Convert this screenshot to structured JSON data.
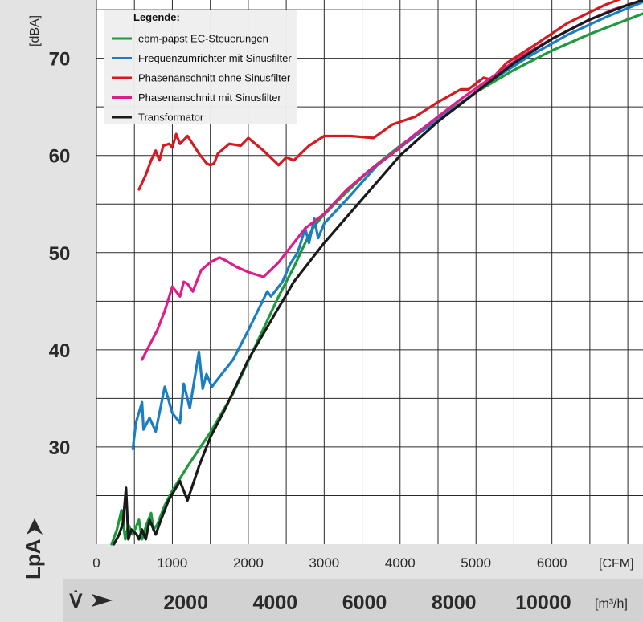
{
  "chart_data": {
    "type": "line",
    "y_unit": "[dBA]",
    "y_label": "LpA",
    "y_ticks": [
      30,
      40,
      50,
      60,
      70
    ],
    "ylim": [
      20,
      76
    ],
    "x_unit": "[CFM]",
    "x_ticks": [
      0,
      1000,
      2000,
      3000,
      4000,
      5000,
      6000
    ],
    "xlim": [
      0,
      7200
    ],
    "x2_label": "V̇",
    "x2_unit": "[m³/h]",
    "x2_ticks": [
      2000,
      4000,
      6000,
      8000,
      10000
    ],
    "grid": true,
    "legend": {
      "title": "Legende:",
      "position": "top-left"
    },
    "series": [
      {
        "name": "ebm-papst EC-Steuerungen",
        "color": "#1e9a3c",
        "points": [
          [
            200,
            20
          ],
          [
            270,
            21.5
          ],
          [
            330,
            23.5
          ],
          [
            380,
            20.5
          ],
          [
            420,
            22
          ],
          [
            480,
            21
          ],
          [
            560,
            22.5
          ],
          [
            600,
            20.5
          ],
          [
            660,
            22
          ],
          [
            720,
            23.2
          ],
          [
            750,
            21.5
          ],
          [
            800,
            22
          ],
          [
            900,
            24
          ],
          [
            1000,
            25.5
          ],
          [
            1200,
            28
          ],
          [
            1500,
            31.5
          ],
          [
            1800,
            35.5
          ],
          [
            2100,
            40.5
          ],
          [
            2400,
            45.5
          ],
          [
            2600,
            48.5
          ],
          [
            2750,
            51
          ],
          [
            2850,
            52.5
          ],
          [
            2950,
            53.5
          ],
          [
            3200,
            55.5
          ],
          [
            3600,
            58.5
          ],
          [
            4000,
            61
          ],
          [
            4500,
            63.8
          ],
          [
            5000,
            66.5
          ],
          [
            5500,
            68.8
          ],
          [
            6000,
            70.8
          ],
          [
            6500,
            72.5
          ],
          [
            7000,
            74
          ],
          [
            7200,
            74.6
          ]
        ]
      },
      {
        "name": "Frequenzumrichter mit Sinusfilter",
        "color": "#1b7ec2",
        "points": [
          [
            480,
            29.8
          ],
          [
            520,
            32.5
          ],
          [
            600,
            34.6
          ],
          [
            620,
            31.8
          ],
          [
            700,
            33
          ],
          [
            780,
            31.6
          ],
          [
            900,
            36.2
          ],
          [
            1000,
            33.5
          ],
          [
            1100,
            32.5
          ],
          [
            1150,
            36.5
          ],
          [
            1230,
            34
          ],
          [
            1350,
            39.8
          ],
          [
            1400,
            36
          ],
          [
            1450,
            37.5
          ],
          [
            1520,
            36.2
          ],
          [
            1650,
            37.5
          ],
          [
            1800,
            39
          ],
          [
            2000,
            42
          ],
          [
            2250,
            46
          ],
          [
            2300,
            45.5
          ],
          [
            2450,
            47
          ],
          [
            2550,
            48.8
          ],
          [
            2650,
            50
          ],
          [
            2750,
            52.5
          ],
          [
            2800,
            51
          ],
          [
            2870,
            53.5
          ],
          [
            2920,
            51.5
          ],
          [
            3000,
            53
          ],
          [
            3300,
            55.5
          ],
          [
            3700,
            59
          ],
          [
            4200,
            62
          ],
          [
            4700,
            64.8
          ],
          [
            5200,
            67.7
          ],
          [
            5700,
            70.2
          ],
          [
            6200,
            72.4
          ],
          [
            6700,
            74.2
          ],
          [
            7200,
            75.8
          ]
        ]
      },
      {
        "name": "Phasenanschnitt ohne Sinusfilter",
        "color": "#d71920",
        "points": [
          [
            560,
            56.5
          ],
          [
            650,
            58
          ],
          [
            720,
            59.5
          ],
          [
            780,
            60.5
          ],
          [
            830,
            59.5
          ],
          [
            880,
            61
          ],
          [
            960,
            61.2
          ],
          [
            1000,
            60.8
          ],
          [
            1050,
            62.2
          ],
          [
            1100,
            61.2
          ],
          [
            1200,
            62
          ],
          [
            1350,
            60.2
          ],
          [
            1450,
            59.2
          ],
          [
            1500,
            59
          ],
          [
            1550,
            59.2
          ],
          [
            1600,
            60.2
          ],
          [
            1750,
            61.2
          ],
          [
            1900,
            61
          ],
          [
            2000,
            61.8
          ],
          [
            2200,
            60.5
          ],
          [
            2400,
            59
          ],
          [
            2500,
            59.8
          ],
          [
            2600,
            59.5
          ],
          [
            2800,
            61
          ],
          [
            2900,
            61.5
          ],
          [
            3000,
            62
          ],
          [
            3350,
            62
          ],
          [
            3650,
            61.8
          ],
          [
            3900,
            63.2
          ],
          [
            4200,
            64
          ],
          [
            4500,
            65.5
          ],
          [
            4800,
            66.8
          ],
          [
            4900,
            66.8
          ],
          [
            5100,
            68
          ],
          [
            5200,
            67.8
          ],
          [
            5400,
            69.5
          ],
          [
            5800,
            71.5
          ],
          [
            6200,
            73.6
          ],
          [
            6700,
            75.5
          ],
          [
            7200,
            77
          ]
        ]
      },
      {
        "name": "Phasenanschnitt mit Sinusfilter",
        "color": "#e01c8a",
        "points": [
          [
            600,
            39
          ],
          [
            700,
            40.5
          ],
          [
            800,
            42
          ],
          [
            900,
            44
          ],
          [
            1000,
            46.5
          ],
          [
            1050,
            46
          ],
          [
            1100,
            45.5
          ],
          [
            1150,
            47
          ],
          [
            1200,
            46.8
          ],
          [
            1270,
            46
          ],
          [
            1380,
            48.2
          ],
          [
            1500,
            49
          ],
          [
            1620,
            49.5
          ],
          [
            1700,
            49.2
          ],
          [
            1850,
            48.5
          ],
          [
            2000,
            48
          ],
          [
            2200,
            47.5
          ],
          [
            2400,
            49
          ],
          [
            2550,
            50.5
          ],
          [
            2750,
            52.5
          ],
          [
            3000,
            54
          ],
          [
            3300,
            56.5
          ],
          [
            3600,
            58.5
          ],
          [
            3900,
            60.2
          ],
          [
            4200,
            62.2
          ],
          [
            4500,
            64
          ],
          [
            4800,
            65.8
          ],
          [
            5200,
            68
          ],
          [
            5600,
            70.2
          ],
          [
            6000,
            72
          ],
          [
            6400,
            73.6
          ],
          [
            6800,
            75
          ],
          [
            7200,
            76
          ]
        ]
      },
      {
        "name": "Transformator",
        "color": "#1a1a1a",
        "points": [
          [
            230,
            20
          ],
          [
            300,
            21
          ],
          [
            350,
            22.2
          ],
          [
            390,
            25.8
          ],
          [
            420,
            20.5
          ],
          [
            460,
            21.5
          ],
          [
            530,
            21
          ],
          [
            560,
            20.5
          ],
          [
            600,
            21.5
          ],
          [
            650,
            20.5
          ],
          [
            700,
            22.5
          ],
          [
            780,
            21
          ],
          [
            850,
            22.5
          ],
          [
            950,
            24.5
          ],
          [
            1100,
            26.5
          ],
          [
            1150,
            25.5
          ],
          [
            1200,
            24.5
          ],
          [
            1350,
            28
          ],
          [
            1500,
            31
          ],
          [
            1700,
            34
          ],
          [
            2000,
            39
          ],
          [
            2300,
            43
          ],
          [
            2600,
            47
          ],
          [
            3000,
            51
          ],
          [
            3500,
            55.5
          ],
          [
            4000,
            60
          ],
          [
            4500,
            63.5
          ],
          [
            5000,
            66.5
          ],
          [
            5500,
            69.5
          ],
          [
            6000,
            72
          ],
          [
            6500,
            74
          ],
          [
            7000,
            75.5
          ],
          [
            7200,
            76
          ]
        ]
      }
    ]
  }
}
